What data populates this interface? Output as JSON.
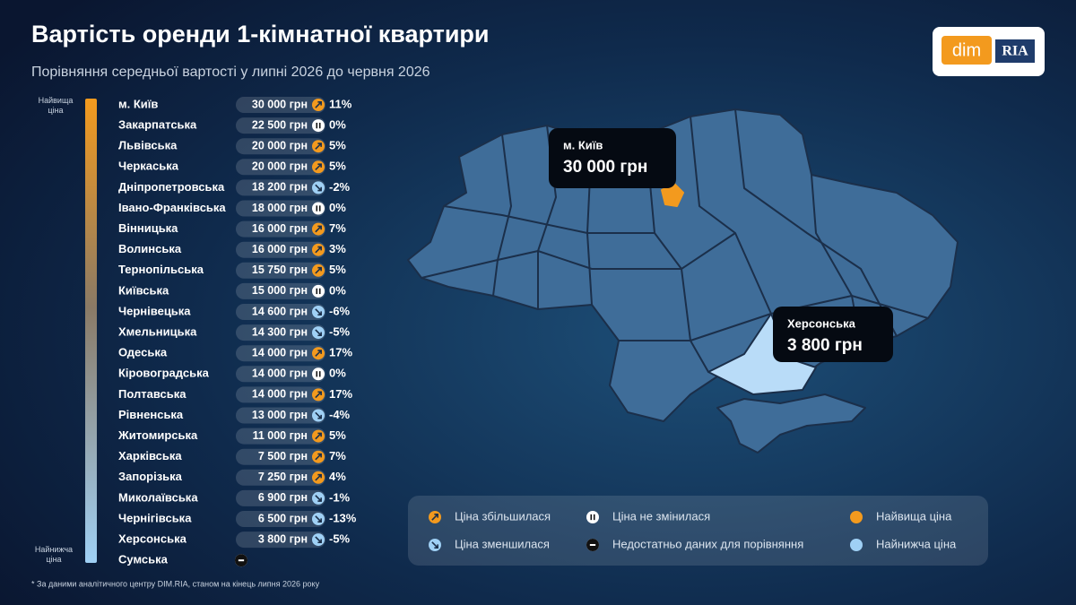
{
  "header": {
    "title": "Вартість оренди 1-кімнатної квартири",
    "subtitle": "Порівняння середньої вартості у липні 2026 до червня 2026",
    "logo_left": "dim",
    "logo_right": "RIA"
  },
  "scale": {
    "top": "Найвища ціна",
    "bottom": "Найнижча ціна"
  },
  "table": {
    "rows": [
      {
        "region": "м. Київ",
        "price": "30 000 грн",
        "status": "up",
        "change": "11%"
      },
      {
        "region": "Закарпатська",
        "price": "22 500 грн",
        "status": "same",
        "change": "0%"
      },
      {
        "region": "Львівська",
        "price": "20 000 грн",
        "status": "up",
        "change": "5%"
      },
      {
        "region": "Черкаська",
        "price": "20 000 грн",
        "status": "up",
        "change": "5%"
      },
      {
        "region": "Дніпропетровська",
        "price": "18 200 грн",
        "status": "down",
        "change": "-2%"
      },
      {
        "region": "Івано-Франківська",
        "price": "18 000 грн",
        "status": "same",
        "change": "0%"
      },
      {
        "region": "Вінницька",
        "price": "16 000 грн",
        "status": "up",
        "change": "7%"
      },
      {
        "region": "Волинська",
        "price": "16 000 грн",
        "status": "up",
        "change": "3%"
      },
      {
        "region": "Тернопільська",
        "price": "15 750 грн",
        "status": "up",
        "change": "5%"
      },
      {
        "region": "Київська",
        "price": "15 000 грн",
        "status": "same",
        "change": "0%"
      },
      {
        "region": "Чернівецька",
        "price": "14 600 грн",
        "status": "down",
        "change": "-6%"
      },
      {
        "region": "Хмельницька",
        "price": "14 300 грн",
        "status": "down",
        "change": "-5%"
      },
      {
        "region": "Одеська",
        "price": "14 000 грн",
        "status": "up",
        "change": "17%"
      },
      {
        "region": "Кіровоградська",
        "price": "14 000 грн",
        "status": "same",
        "change": "0%"
      },
      {
        "region": "Полтавська",
        "price": "14 000 грн",
        "status": "up",
        "change": "17%"
      },
      {
        "region": "Рівненська",
        "price": "13 000 грн",
        "status": "down",
        "change": "-4%"
      },
      {
        "region": "Житомирська",
        "price": "11 000 грн",
        "status": "up",
        "change": "5%"
      },
      {
        "region": "Харківська",
        "price": "7 500 грн",
        "status": "up",
        "change": "7%"
      },
      {
        "region": "Запорізька",
        "price": "7 250 грн",
        "status": "up",
        "change": "4%"
      },
      {
        "region": "Миколаївська",
        "price": "6 900 грн",
        "status": "down",
        "change": "-1%"
      },
      {
        "region": "Чернігівська",
        "price": "6 500 грн",
        "status": "down",
        "change": "-13%"
      },
      {
        "region": "Херсонська",
        "price": "3 800 грн",
        "status": "down",
        "change": "-5%"
      },
      {
        "region": "Сумська",
        "status": "none"
      }
    ]
  },
  "map": {
    "callouts": [
      {
        "region": "м. Київ",
        "price": "30 000 грн"
      },
      {
        "region": "Херсонська",
        "price": "3 800 грн"
      }
    ]
  },
  "legend": {
    "items": [
      {
        "icon": "up",
        "label": "Ціна збільшилася"
      },
      {
        "icon": "same",
        "label": "Ціна не змінилася"
      },
      {
        "icon": "highest",
        "label": "Найвища ціна"
      },
      {
        "icon": "down",
        "label": "Ціна зменшилася"
      },
      {
        "icon": "none",
        "label": "Недостатньо даних для порівняння"
      },
      {
        "icon": "lowest",
        "label": "Найнижча ціна"
      }
    ]
  },
  "footnote": "* За даними аналітичного центру DIM.RIA, станом на кінець липня 2026 року"
}
